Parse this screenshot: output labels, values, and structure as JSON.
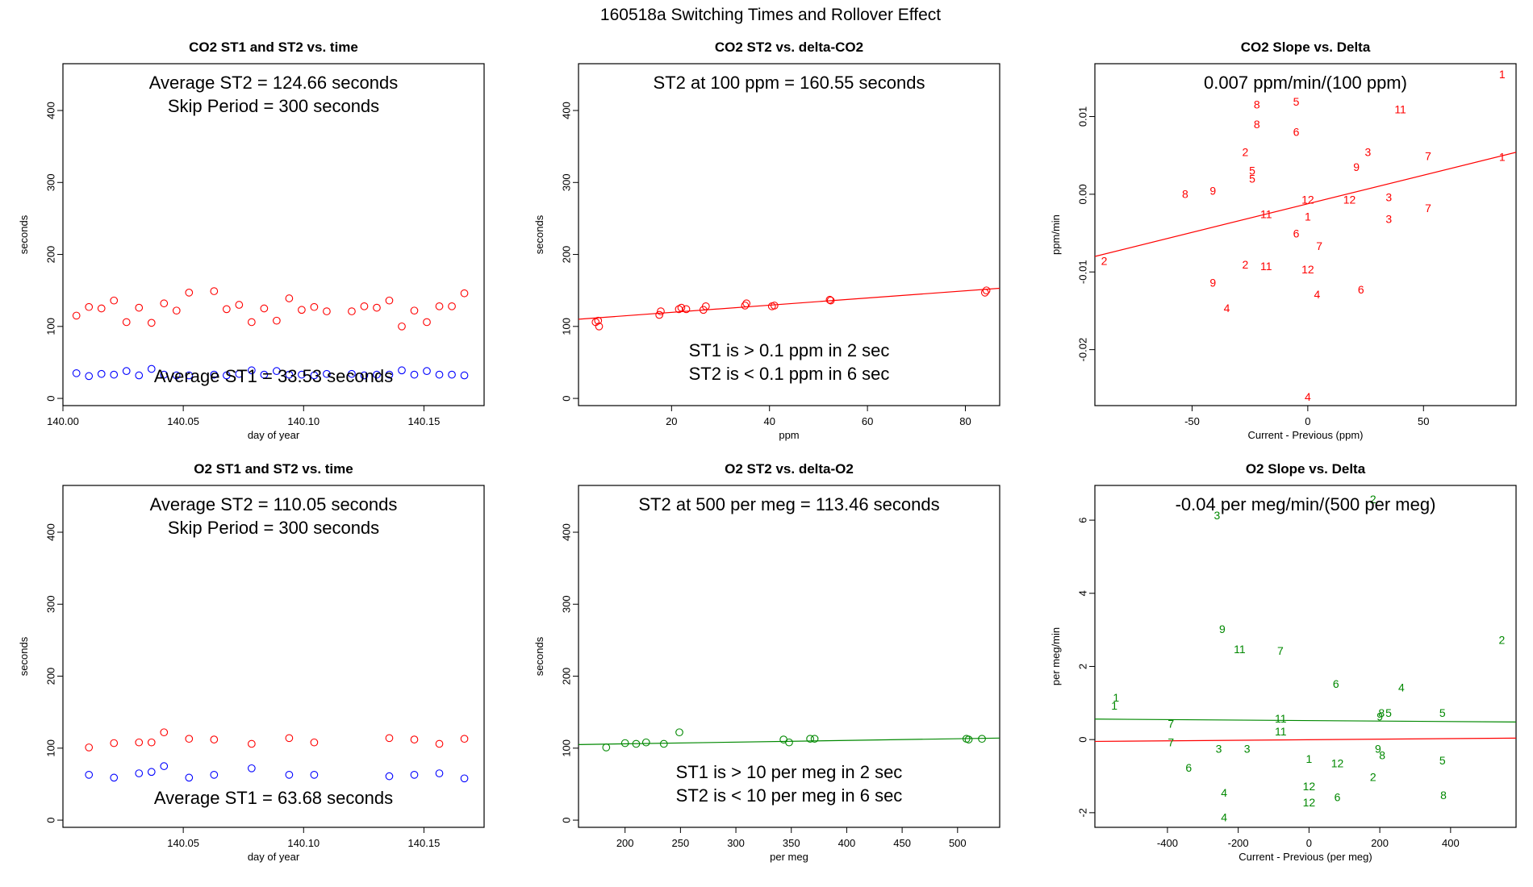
{
  "page_title": "160518a   Switching Times and Rollover Effect",
  "colors": {
    "co2": "#ff0000",
    "st1": "#0000ff",
    "o2": "#008800",
    "axis": "#000000"
  },
  "chart_data": [
    {
      "type": "scatter",
      "title": "CO2 ST1 and ST2 vs. time",
      "xlabel": "day of year",
      "ylabel": "seconds",
      "xlim": [
        140.0,
        140.175
      ],
      "ylim": [
        -10,
        465
      ],
      "xticks": [
        140.0,
        140.05,
        140.1,
        140.15
      ],
      "xtick_labels": [
        "140.00",
        "140.05",
        "140.10",
        "140.15"
      ],
      "yticks": [
        0,
        100,
        200,
        300,
        400
      ],
      "ytick_labels": [
        "0",
        "100",
        "200",
        "300",
        "400"
      ],
      "annotations": [
        "Average ST2 =  124.66  seconds",
        "Skip Period =  300  seconds",
        "Average ST1 =  33.53  seconds"
      ],
      "series": [
        {
          "name": "ST2",
          "color": "#ff0000",
          "marker": "circle",
          "x": [
            140.0056,
            140.0108,
            140.016,
            140.0212,
            140.0264,
            140.0316,
            140.0368,
            140.042,
            140.0472,
            140.0524,
            140.0628,
            140.068,
            140.0732,
            140.0784,
            140.0836,
            140.0888,
            140.094,
            140.0992,
            140.1044,
            140.1096,
            140.12,
            140.1252,
            140.1304,
            140.1356,
            140.1408,
            140.146,
            140.1512,
            140.1564,
            140.1616,
            140.1668
          ],
          "y": [
            115,
            127,
            125,
            136,
            106,
            126,
            105,
            132,
            122,
            147,
            149,
            124,
            130,
            106,
            125,
            108,
            139,
            123,
            127,
            121,
            121,
            128,
            126,
            136,
            100,
            122,
            106,
            128,
            128,
            146
          ]
        },
        {
          "name": "ST1",
          "color": "#0000ff",
          "marker": "circle",
          "x": [
            140.0056,
            140.0108,
            140.016,
            140.0212,
            140.0264,
            140.0316,
            140.0368,
            140.042,
            140.0472,
            140.0524,
            140.0628,
            140.068,
            140.0732,
            140.0784,
            140.0836,
            140.0888,
            140.094,
            140.0992,
            140.1044,
            140.1096,
            140.12,
            140.1252,
            140.1304,
            140.1356,
            140.1408,
            140.146,
            140.1512,
            140.1564,
            140.1616,
            140.1668
          ],
          "y": [
            35,
            31,
            34,
            33,
            38,
            32,
            41,
            33,
            32,
            32,
            33,
            32,
            34,
            39,
            33,
            38,
            33,
            33,
            32,
            34,
            34,
            32,
            33,
            33,
            39,
            33,
            38,
            33,
            33,
            32
          ]
        }
      ],
      "lines": []
    },
    {
      "type": "scatter",
      "title": "CO2 ST2 vs. delta-CO2",
      "xlabel": "ppm",
      "ylabel": "seconds",
      "xlim": [
        1,
        87
      ],
      "ylim": [
        -10,
        465
      ],
      "xticks": [
        20,
        40,
        60,
        80
      ],
      "xtick_labels": [
        "20",
        "40",
        "60",
        "80"
      ],
      "yticks": [
        0,
        100,
        200,
        300,
        400
      ],
      "ytick_labels": [
        "0",
        "100",
        "200",
        "300",
        "400"
      ],
      "annotations": [
        "ST2 at 100 ppm =  160.55  seconds",
        "ST1 is > 0.1 ppm in 2 sec",
        "ST2 is < 0.1 ppm in 6 sec"
      ],
      "series": [
        {
          "name": "ST2",
          "color": "#ff0000",
          "marker": "circle",
          "x": [
            4.5,
            5.0,
            5.2,
            17.5,
            17.8,
            21.5,
            22.0,
            23.0,
            26.5,
            27.0,
            35.0,
            35.3,
            40.5,
            41.0,
            52.3,
            52.5,
            84.0,
            84.3
          ],
          "y": [
            106,
            108,
            100,
            116,
            121,
            124,
            126,
            124,
            123,
            128,
            129,
            132,
            128,
            129,
            137,
            136,
            147,
            150
          ]
        }
      ],
      "lines": [
        {
          "color": "#ff0000",
          "x": [
            1,
            87
          ],
          "y": [
            110,
            153
          ]
        }
      ]
    },
    {
      "type": "scatter",
      "title": "CO2 Slope vs. Delta",
      "xlabel": "Current - Previous (ppm)",
      "ylabel": "ppm/min",
      "xlim": [
        -92,
        90
      ],
      "ylim": [
        -0.0272,
        0.0168
      ],
      "xticks": [
        -50,
        0,
        50
      ],
      "xtick_labels": [
        "-50",
        "0",
        "50"
      ],
      "yticks": [
        -0.02,
        -0.01,
        0.0,
        0.01
      ],
      "ytick_labels": [
        "-0.02",
        "-0.01",
        "0.00",
        "0.01"
      ],
      "annotations": [
        "0.007  ppm/min/(100 ppm)"
      ],
      "series": [
        {
          "name": "slope",
          "color": "#ff0000",
          "marker": "label",
          "x": [
            84,
            -22,
            -5,
            -22,
            40,
            -5,
            -27,
            26,
            52,
            -24,
            21,
            -24,
            -53,
            -41,
            0,
            18,
            35,
            -18,
            35,
            52,
            0,
            -5,
            5,
            -27,
            -18,
            0,
            -41,
            23,
            -35,
            4,
            -88,
            84
          ],
          "y": [
            0.0153,
            0.0114,
            0.0118,
            0.0089,
            0.0108,
            0.0079,
            0.0053,
            0.0053,
            0.0048,
            0.0029,
            0.0034,
            0.0019,
            -0.0001,
            0.0003,
            -0.0008,
            -0.0008,
            -0.0005,
            -0.0027,
            -0.0033,
            -0.0019,
            -0.003,
            -0.0052,
            -0.0068,
            -0.0092,
            -0.0094,
            -0.0098,
            -0.0115,
            -0.0124,
            -0.0148,
            -0.013,
            -0.0087,
            0.0047
          ],
          "labels": [
            "1",
            "8",
            "5",
            "8",
            "11",
            "6",
            "2",
            "3",
            "7",
            "5",
            "9",
            "5",
            "8",
            "9",
            "12",
            "12",
            "3",
            "11",
            "3",
            "7",
            "1",
            "6",
            "7",
            "2",
            "11",
            "12",
            "9",
            "6",
            "4",
            "4",
            "2",
            "1"
          ]
        },
        {
          "name": "slope-extra",
          "color": "#ff0000",
          "marker": "label",
          "x": [
            0
          ],
          "y": [
            -0.0262
          ],
          "labels": [
            "4"
          ]
        }
      ],
      "lines": [
        {
          "color": "#ff0000",
          "x": [
            -92,
            90
          ],
          "y": [
            -0.008,
            0.0054
          ]
        }
      ]
    },
    {
      "type": "scatter",
      "title": "O2 ST1 and ST2 vs. time",
      "xlabel": "day of year",
      "ylabel": "seconds",
      "xlim": [
        140.0,
        140.175
      ],
      "ylim": [
        -10,
        465
      ],
      "xticks": [
        140.05,
        140.1,
        140.15
      ],
      "xtick_labels": [
        "140.05",
        "140.10",
        "140.15"
      ],
      "yticks": [
        0,
        100,
        200,
        300,
        400
      ],
      "ytick_labels": [
        "0",
        "100",
        "200",
        "300",
        "400"
      ],
      "annotations": [
        "Average ST2 =  110.05  seconds",
        "Skip Period =  300  seconds",
        "Average ST1 =  63.68  seconds"
      ],
      "series": [
        {
          "name": "ST2",
          "color": "#ff0000",
          "marker": "circle",
          "x": [
            140.0108,
            140.0212,
            140.0316,
            140.0368,
            140.042,
            140.0524,
            140.0628,
            140.0784,
            140.094,
            140.1044,
            140.1356,
            140.146,
            140.1564,
            140.1668
          ],
          "y": [
            101,
            107,
            108,
            108,
            122,
            113,
            112,
            106,
            114,
            108,
            114,
            112,
            106,
            113
          ]
        },
        {
          "name": "ST1",
          "color": "#0000ff",
          "marker": "circle",
          "x": [
            140.0108,
            140.0212,
            140.0316,
            140.0368,
            140.042,
            140.0524,
            140.0628,
            140.0784,
            140.094,
            140.1044,
            140.1356,
            140.146,
            140.1564,
            140.1668
          ],
          "y": [
            63,
            59,
            65,
            67,
            75,
            59,
            63,
            72,
            63,
            63,
            61,
            63,
            65,
            58
          ]
        }
      ],
      "lines": []
    },
    {
      "type": "scatter",
      "title": "O2 ST2 vs. delta-O2",
      "xlabel": "per meg",
      "ylabel": "seconds",
      "xlim": [
        158,
        538
      ],
      "ylim": [
        -10,
        465
      ],
      "xticks": [
        200,
        250,
        300,
        350,
        400,
        450,
        500
      ],
      "xtick_labels": [
        "200",
        "250",
        "300",
        "350",
        "400",
        "450",
        "500"
      ],
      "yticks": [
        0,
        100,
        200,
        300,
        400
      ],
      "ytick_labels": [
        "0",
        "100",
        "200",
        "300",
        "400"
      ],
      "annotations": [
        "ST2 at 500 per meg =  113.46  seconds",
        "ST1 is > 10 per meg in 2 sec",
        "ST2 is < 10 per meg in 6 sec"
      ],
      "series": [
        {
          "name": "ST2",
          "color": "#008800",
          "marker": "circle",
          "x": [
            183,
            200,
            210,
            219,
            235,
            249,
            343,
            348,
            367,
            371,
            508,
            510,
            522
          ],
          "y": [
            101,
            107,
            106,
            108,
            106,
            122,
            112,
            108,
            113,
            113,
            113,
            112,
            113
          ]
        }
      ],
      "lines": [
        {
          "color": "#008800",
          "x": [
            158,
            538
          ],
          "y": [
            105,
            114
          ]
        }
      ]
    },
    {
      "type": "scatter",
      "title": "O2 Slope vs. Delta",
      "xlabel": "Current - Previous (per meg)",
      "ylabel": "per meg/min",
      "xlim": [
        -605,
        585
      ],
      "ylim": [
        -2.4,
        6.95
      ],
      "xticks": [
        -400,
        -200,
        0,
        200,
        400
      ],
      "xtick_labels": [
        "-400",
        "-200",
        "0",
        "200",
        "400"
      ],
      "yticks": [
        -2,
        0,
        2,
        4,
        6
      ],
      "ytick_labels": [
        "-2",
        "0",
        "2",
        "4",
        "6"
      ],
      "annotations": [
        "-0.04  per meg/min/(500 per meg)"
      ],
      "series": [
        {
          "name": "slope",
          "color": "#008800",
          "marker": "label",
          "x": [
            181,
            -260,
            -245,
            -196,
            -81,
            545,
            76,
            261,
            -545,
            -550,
            200,
            205,
            225,
            377,
            -80,
            -80,
            -390,
            -390,
            195,
            207,
            -255,
            -175,
            0,
            80,
            377,
            181,
            -340,
            -240,
            0,
            0,
            80,
            380,
            -240
          ],
          "y": [
            6.55,
            6.1,
            3.0,
            2.45,
            2.4,
            2.7,
            1.5,
            1.4,
            1.12,
            0.9,
            0.6,
            0.7,
            0.7,
            0.7,
            0.55,
            0.2,
            0.4,
            -0.1,
            -0.28,
            -0.45,
            -0.28,
            -0.28,
            -0.55,
            -0.68,
            -0.6,
            -1.05,
            -0.8,
            -1.48,
            -1.3,
            -1.75,
            -1.6,
            -1.55,
            -2.15
          ],
          "labels": [
            "2",
            "3",
            "9",
            "11",
            "7",
            "2",
            "6",
            "4",
            "1",
            "1",
            "9",
            "8",
            "5",
            "5",
            "11",
            "11",
            "7",
            "7",
            "9",
            "8",
            "3",
            "3",
            "1",
            "12",
            "5",
            "2",
            "6",
            "4",
            "12",
            "12",
            "6",
            "8",
            "4"
          ]
        }
      ],
      "lines": [
        {
          "color": "#008800",
          "x": [
            -605,
            585
          ],
          "y": [
            0.56,
            0.48
          ]
        },
        {
          "color": "#ff0000",
          "x": [
            -605,
            585
          ],
          "y": [
            -0.05,
            0.04
          ]
        }
      ]
    }
  ]
}
